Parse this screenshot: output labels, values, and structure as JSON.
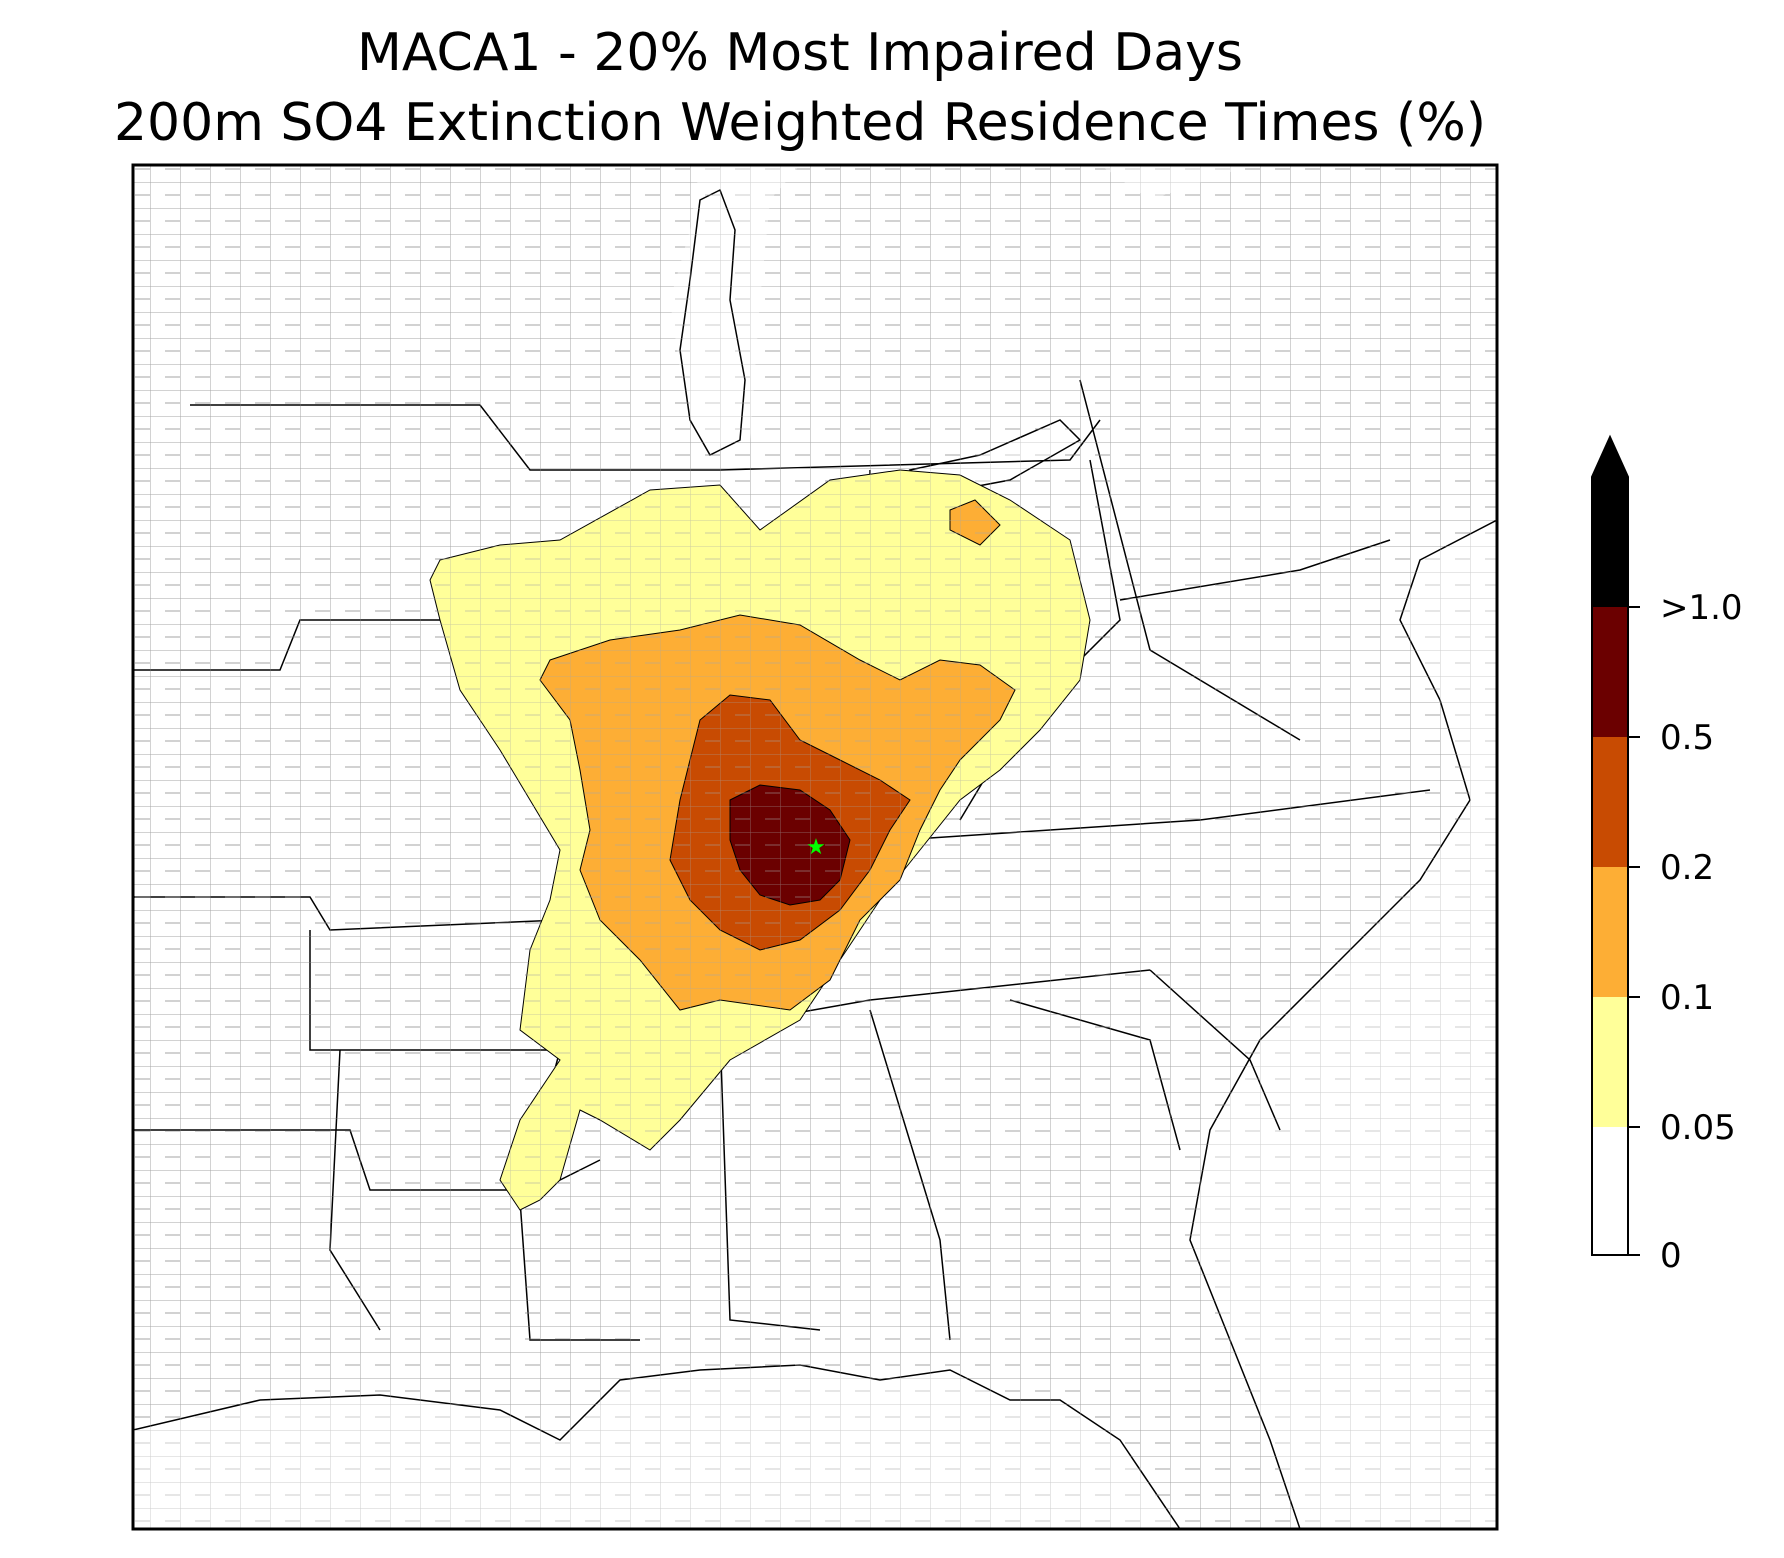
{
  "title_line1": "MACA1 - 20% Most Impaired Days",
  "title_line2": "200m SO4 Extinction Weighted Residence Times (%)",
  "colorbar": {
    "levels": [
      {
        "value": "0",
        "color": "#ffffff"
      },
      {
        "value": "0.05",
        "color": "#ffff99"
      },
      {
        "value": "0.1",
        "color": "#fdae35"
      },
      {
        "value": "0.2",
        "color": "#c84b02"
      },
      {
        "value": "0.5",
        "color": "#6b0000"
      },
      {
        "value": ">1.0",
        "color": "#000000"
      }
    ]
  },
  "site_marker": {
    "color": "#00ff00",
    "icon": "star-icon"
  },
  "map_colors": {
    "state_border": "#000000",
    "county_border": "#9a9a9a"
  }
}
